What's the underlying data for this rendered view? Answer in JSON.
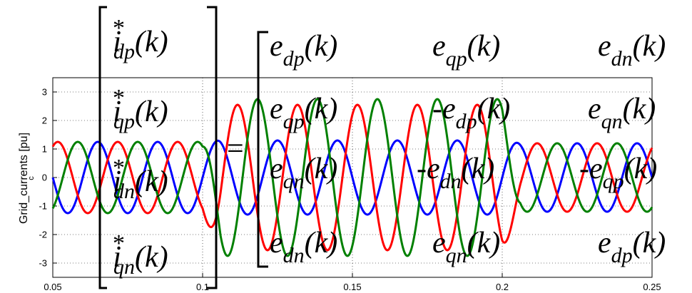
{
  "chart_data": {
    "type": "line",
    "title": "",
    "xlabel": "",
    "ylabel": "Grid_currents [pu]",
    "ylabel_subscript": "c",
    "xlim": [
      0.05,
      0.25
    ],
    "ylim": [
      -3.5,
      3.5
    ],
    "grid": true,
    "xticks": [
      "0.05",
      "0.1",
      "0.15",
      "0.2",
      "0.25"
    ],
    "yticks": [
      "3",
      "2",
      "1",
      "0",
      "-1",
      "-2",
      "-3"
    ],
    "x_tick_values": [
      0.05,
      0.1,
      0.15,
      0.2,
      0.25
    ],
    "y_tick_values": [
      3,
      2,
      1,
      0,
      -1,
      -2,
      -3
    ],
    "series": [
      {
        "color": "#0000ff",
        "segments": [
          {
            "t0": 0.05,
            "t1": 0.1,
            "amp": 1.25,
            "phase": 0
          },
          {
            "t0": 0.1,
            "t1": 0.2,
            "amp": 1.3,
            "phase": 0
          },
          {
            "t0": 0.2,
            "t1": 0.25,
            "amp": 1.2,
            "phase": 0
          }
        ]
      },
      {
        "color": "#ff0000",
        "segments": [
          {
            "t0": 0.05,
            "t1": 0.1,
            "amp": 1.25,
            "phase": -2.094
          },
          {
            "t0": 0.1,
            "t1": 0.2,
            "amp": 2.55,
            "phase": -2.094
          },
          {
            "t0": 0.2,
            "t1": 0.25,
            "amp": 1.2,
            "phase": -2.094
          }
        ]
      },
      {
        "color": "#008000",
        "segments": [
          {
            "t0": 0.05,
            "t1": 0.1,
            "amp": 1.25,
            "phase": 2.094
          },
          {
            "t0": 0.1,
            "t1": 0.2,
            "amp": 2.75,
            "phase": 2.094
          },
          {
            "t0": 0.2,
            "t1": 0.25,
            "amp": 1.2,
            "phase": 2.094
          }
        ]
      }
    ],
    "frequency_hz": 50
  },
  "equation": {
    "lhs": [
      {
        "base": "i",
        "sup": "*",
        "sub": "dp",
        "arg": "(k)"
      },
      {
        "base": "i",
        "sup": "*",
        "sub": "qp",
        "arg": "(k)"
      },
      {
        "base": "i",
        "sup": "*",
        "sub": "dn",
        "arg": "(k)"
      },
      {
        "base": "i",
        "sup": "*",
        "sub": "qn",
        "arg": "(k)"
      }
    ],
    "equals": "=",
    "rows": [
      [
        "e|dp|(k)",
        "e|qp|(k)",
        "e|dn|(k)"
      ],
      [
        "e|qp|(k)",
        "-e|dp|(k)",
        "e|qn|(k)"
      ],
      [
        "e|qn|(k)",
        "-e|dn|(k)",
        "-e|qp|(k)"
      ],
      [
        "e|dn|(k)",
        "e|qn|(k)",
        "e|dp|(k)"
      ]
    ]
  }
}
